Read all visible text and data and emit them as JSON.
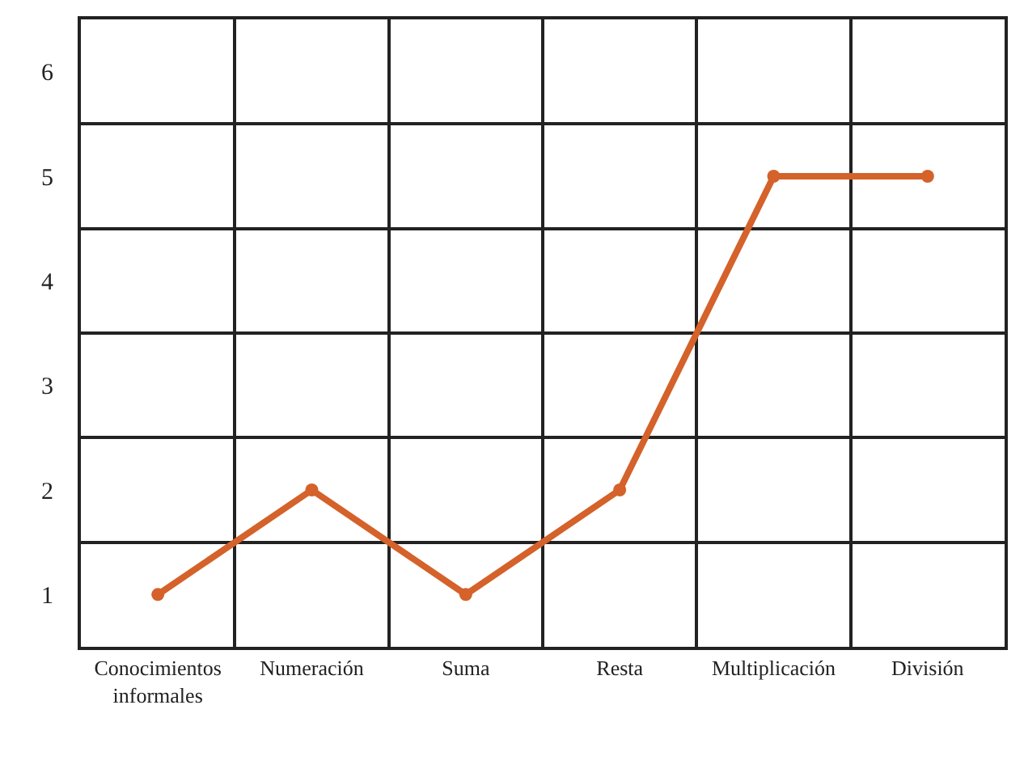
{
  "chart_data": {
    "type": "line",
    "categories": [
      "Conocimientos informales",
      "Numeración",
      "Suma",
      "Resta",
      "Multiplicación",
      "División"
    ],
    "series": [
      {
        "color": "#d4622a",
        "values": [
          1,
          2,
          1,
          2,
          5,
          5
        ]
      }
    ],
    "ylim": [
      0.5,
      6.5
    ],
    "yticks": [
      1,
      2,
      3,
      4,
      5,
      6
    ],
    "grid": true,
    "marker": "circle",
    "line_style": "solid",
    "legend": false
  }
}
